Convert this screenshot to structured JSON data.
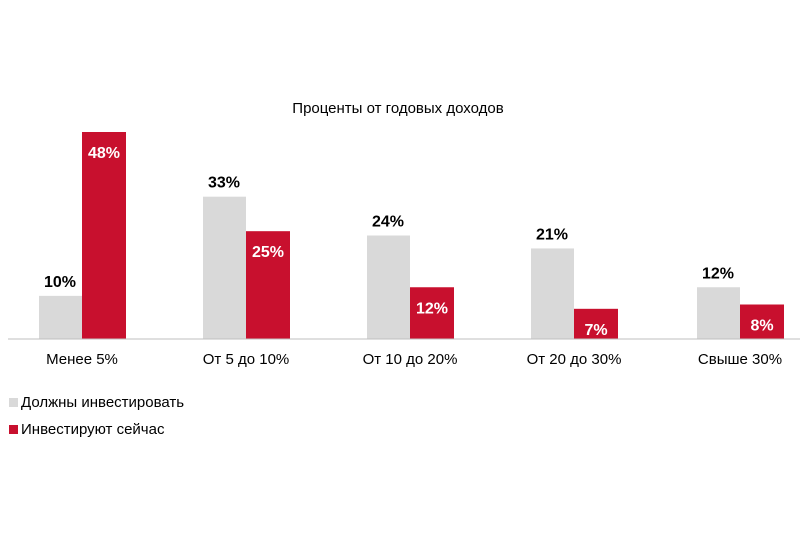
{
  "chart_data": {
    "type": "bar",
    "title": "Проценты  от годовых доходов",
    "categories": [
      "Менее 5%",
      "От 5 до 10%",
      "От 10 до 20%",
      "От 20 до 30%",
      "Свыше 30%"
    ],
    "series": [
      {
        "name": "Должны инвестировать",
        "values": [
          10,
          33,
          24,
          21,
          12
        ],
        "labels": [
          "10%",
          "33%",
          "24%",
          "21%",
          "12%"
        ],
        "color": "#d9d9d9"
      },
      {
        "name": "Инвестируют сейчас",
        "values": [
          48,
          25,
          12,
          7,
          8
        ],
        "labels": [
          "48%",
          "25%",
          "12%",
          "7%",
          "8%"
        ],
        "color": "#c8102e"
      }
    ],
    "ylim": [
      0,
      48
    ],
    "grid": false,
    "legend_position": "bottom-left"
  }
}
